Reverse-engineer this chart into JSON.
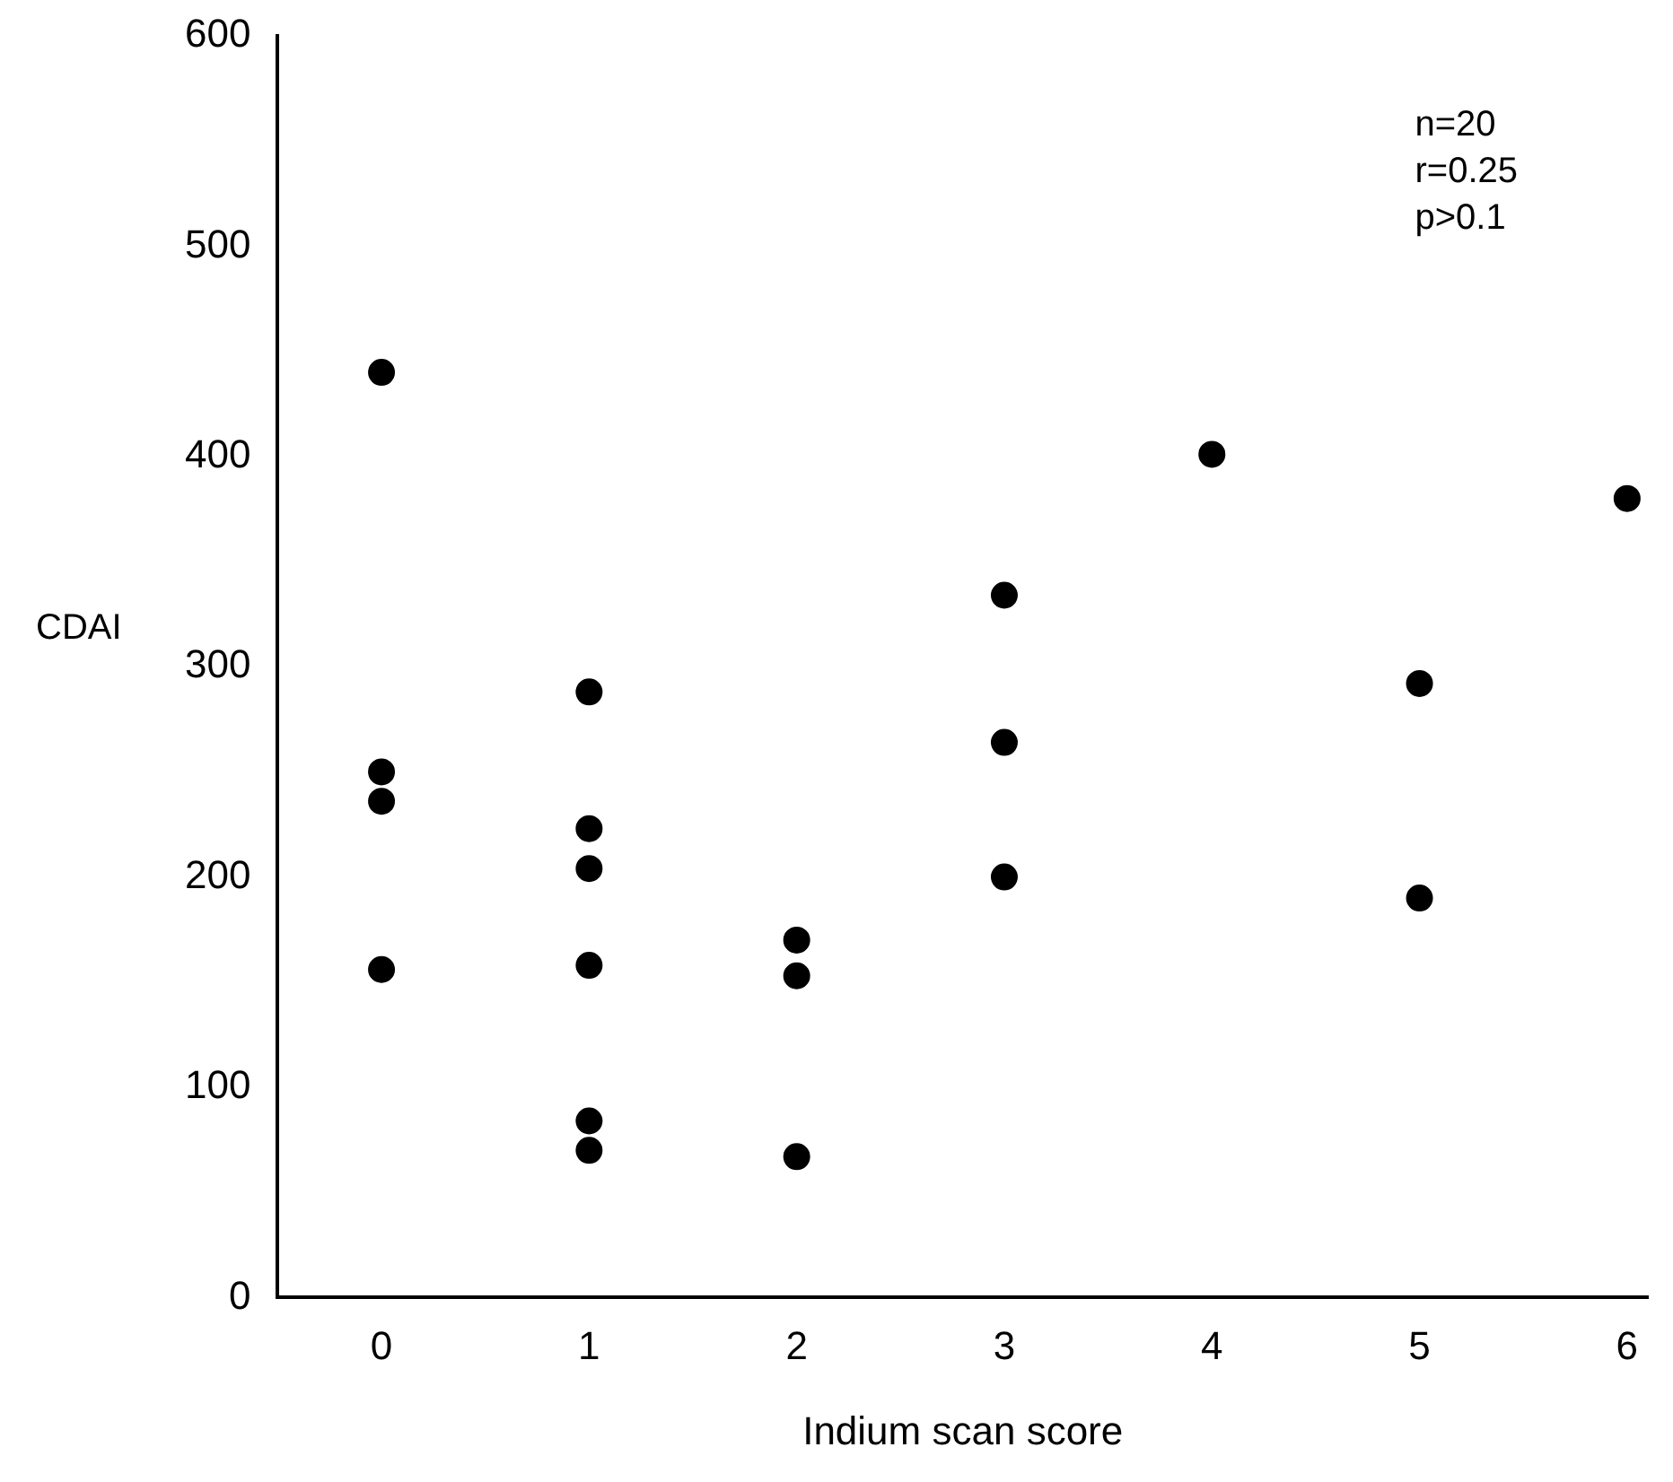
{
  "chart_data": {
    "type": "scatter",
    "xlabel": "Indium scan score",
    "ylabel": "CDAI",
    "x": [
      0,
      0,
      0,
      0,
      1,
      1,
      1,
      1,
      1,
      1,
      2,
      2,
      2,
      3,
      3,
      3,
      4,
      5,
      5,
      6
    ],
    "values": [
      440,
      250,
      236,
      156,
      288,
      223,
      204,
      158,
      84,
      70,
      67,
      170,
      153,
      334,
      264,
      200,
      401,
      292,
      190,
      380
    ],
    "color": "#000000",
    "marker": "circle",
    "grid": false,
    "legend": false,
    "xlim": [
      -0.5,
      6.1
    ],
    "xticks": [
      0,
      1,
      2,
      3,
      4,
      5,
      6
    ],
    "ylim": [
      0,
      600
    ],
    "yticks": [
      0,
      100,
      200,
      300,
      400,
      500,
      600
    ],
    "annotations": [
      "n=20",
      "r=0.25",
      "p>0.1"
    ]
  }
}
